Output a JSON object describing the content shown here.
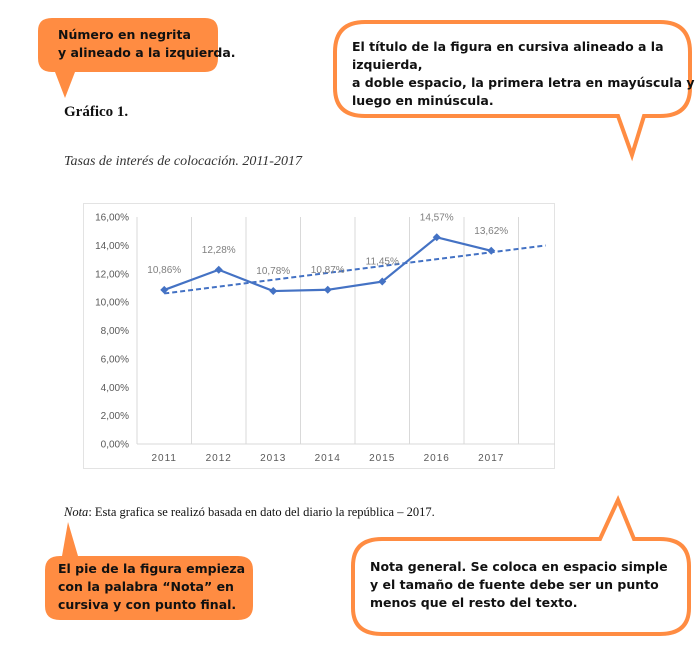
{
  "document": {
    "figure_number": "Gráfico 1.",
    "figure_title": "Tasas de interés de colocación. 2011-2017",
    "note_label": "Nota",
    "note_text": ": Esta grafica se realizó basada en dato del diario la república – 2017."
  },
  "callouts": {
    "number": {
      "line1": "Número en negrita",
      "line2": "y alineado a la izquierda."
    },
    "title": {
      "line1": "El título de la figura en cursiva alineado a la izquierda,",
      "line2": "a doble espacio, la primera letra en mayúscula y",
      "line3": "luego en minúscula."
    },
    "caption": {
      "line1": "El pie de la figura empieza",
      "line2": "con la palabra “Nota” en",
      "line3": "cursiva y con punto final."
    },
    "general_note": {
      "line1": "Nota general. Se coloca en espacio simple",
      "line2": "y el tamaño de fuente debe ser un punto",
      "line3": "menos que el resto del texto."
    }
  },
  "colors": {
    "orange": "#FF8C42",
    "series": "#4472C4",
    "grid": "#D9D9D9",
    "label": "#7F7F7F"
  },
  "chart_data": {
    "type": "line",
    "categories": [
      "2011",
      "2012",
      "2013",
      "2014",
      "2015",
      "2016",
      "2017"
    ],
    "series": [
      {
        "values": [
          10.86,
          12.28,
          10.78,
          10.87,
          11.45,
          14.57,
          13.62
        ],
        "markers": "diamond",
        "trendline": "linear, dashed, forward 1 period"
      }
    ],
    "data_labels": [
      "10,86%",
      "12,28%",
      "10,78%",
      "10,87%",
      "11,45%",
      "14,57%",
      "13,62%"
    ],
    "yticks": [
      "0,00%",
      "2,00%",
      "4,00%",
      "6,00%",
      "8,00%",
      "10,00%",
      "12,00%",
      "14,00%",
      "16,00%"
    ],
    "ylim": [
      0,
      16
    ],
    "grid": "vertical",
    "legend": "none"
  }
}
